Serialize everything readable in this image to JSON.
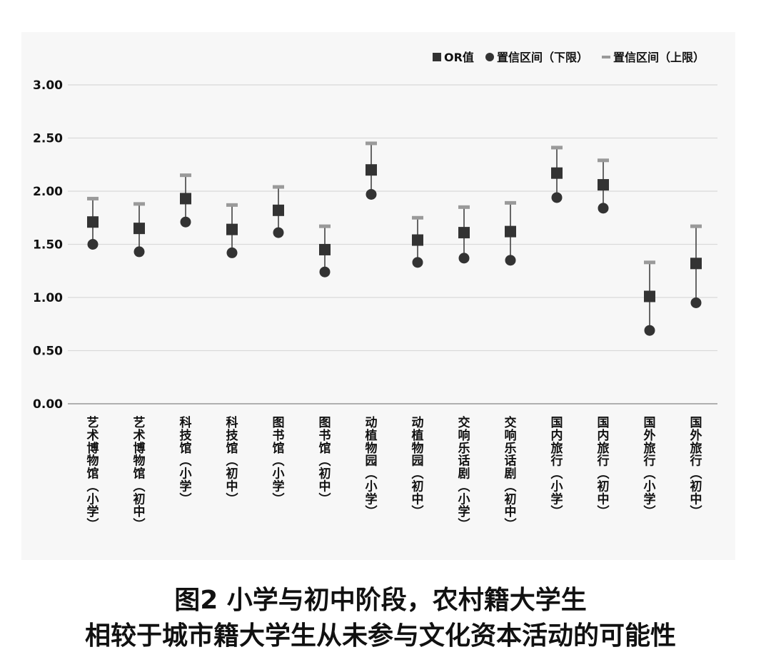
{
  "chart_data": {
    "type": "scatter",
    "categories": [
      "艺术博物馆（小学）",
      "艺术博物馆（初中）",
      "科技馆（小学）",
      "科技馆（初中）",
      "图书馆（小学）",
      "图书馆（初中）",
      "动植物园（小学）",
      "动植物园（初中）",
      "交响乐话剧（小学）",
      "交响乐话剧（初中）",
      "国内旅行（小学）",
      "国内旅行（初中）",
      "国外旅行（小学）",
      "国外旅行（初中）"
    ],
    "series": [
      {
        "name": "OR值",
        "marker": "square",
        "values": [
          1.71,
          1.65,
          1.93,
          1.64,
          1.82,
          1.45,
          2.2,
          1.54,
          1.61,
          1.62,
          2.17,
          2.06,
          1.01,
          1.32
        ]
      },
      {
        "name": "置信区间（下限）",
        "marker": "circle",
        "values": [
          1.5,
          1.43,
          1.71,
          1.42,
          1.61,
          1.24,
          1.97,
          1.33,
          1.37,
          1.35,
          1.94,
          1.84,
          0.69,
          0.95
        ]
      },
      {
        "name": "置信区间（上限）",
        "marker": "dash",
        "values": [
          1.93,
          1.88,
          2.15,
          1.87,
          2.04,
          1.67,
          2.45,
          1.75,
          1.85,
          1.89,
          2.41,
          2.29,
          1.33,
          1.67
        ]
      }
    ],
    "ylim": [
      0,
      3
    ],
    "yticks": [
      "0.00",
      "0.50",
      "1.00",
      "1.50",
      "2.00",
      "2.50",
      "3.00"
    ],
    "grid": true,
    "legend_position": "top-right",
    "colors": {
      "marker": "#333333",
      "upper_marker": "#9a9a9a",
      "whisker": "#555555",
      "grid": "#d9d9d9",
      "axis": "#999999",
      "panel": "#f7f7f7"
    }
  },
  "caption": {
    "line1": "图2  小学与初中阶段，农村籍大学生",
    "line2": "相较于城市籍大学生从未参与文化资本活动的可能性"
  }
}
